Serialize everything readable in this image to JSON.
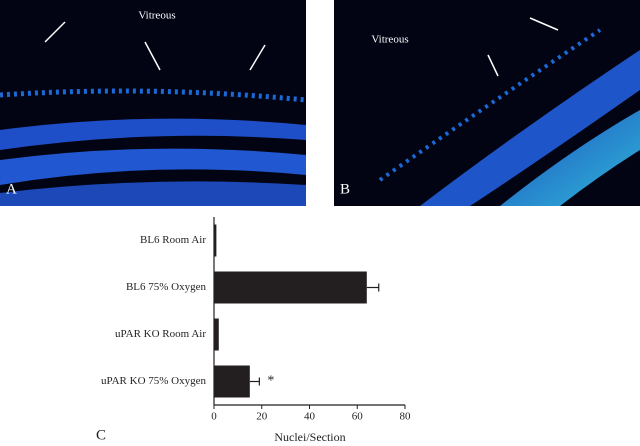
{
  "panels": [
    {
      "label": "A",
      "caption": "Vitreous"
    },
    {
      "label": "B",
      "caption": "Vitreous"
    }
  ],
  "chart_data": {
    "type": "hbar",
    "panel_label": "C",
    "categories": [
      "BL6 Room Air",
      "BL6 75% Oxygen",
      "uPAR KO Room Air",
      "uPAR KO 75% Oxygen"
    ],
    "values": [
      1,
      64,
      2,
      15
    ],
    "errors": [
      null,
      5,
      null,
      4
    ],
    "color": "#231f20",
    "annotation": "*",
    "xlabel": "Nuclei/Section",
    "xlim": [
      0,
      80
    ],
    "xticks": [
      0,
      20,
      40,
      60,
      80
    ]
  }
}
